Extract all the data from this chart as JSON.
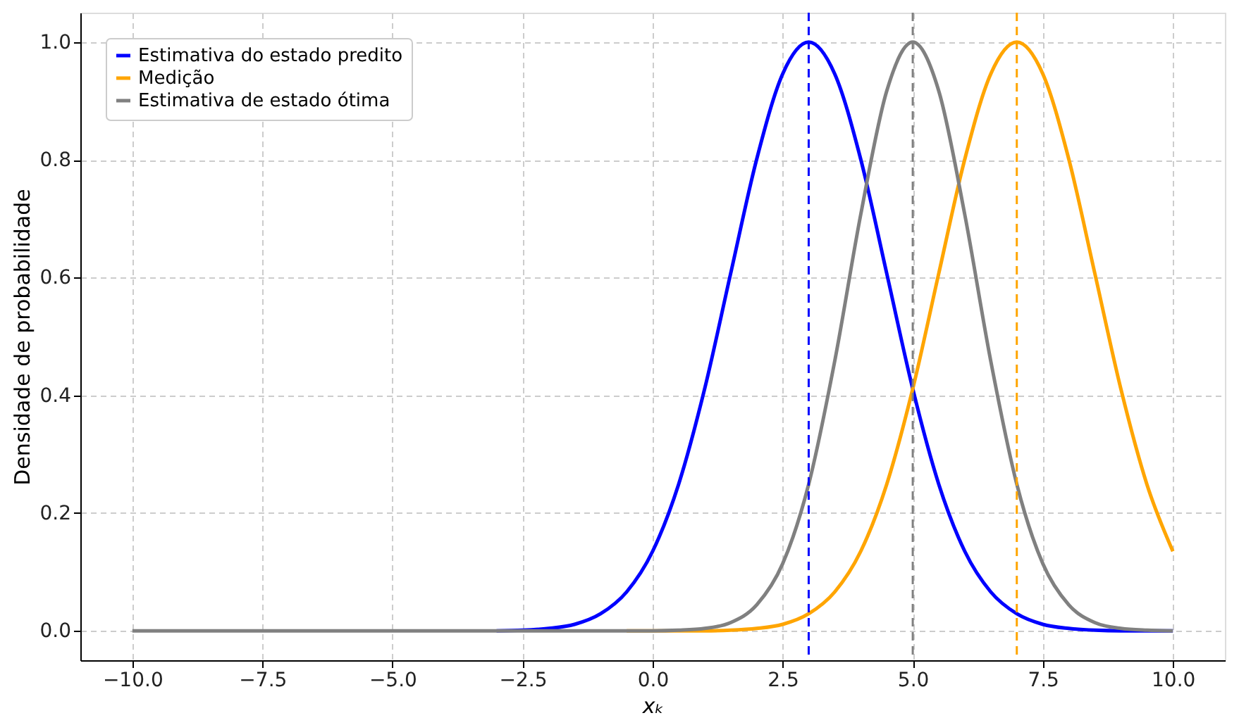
{
  "chart_data": {
    "type": "line",
    "xlabel": "xₖ",
    "ylabel": "Densidade de probabilidade",
    "x": [
      -10,
      -9.5,
      -9,
      -8.5,
      -8,
      -7.5,
      -7,
      -6.5,
      -6,
      -5.5,
      -5,
      -4.5,
      -4,
      -3.5,
      -3,
      -2.5,
      -2,
      -1.5,
      -1,
      -0.5,
      0,
      0.5,
      1,
      1.5,
      2,
      2.5,
      3,
      3.5,
      4,
      4.5,
      5,
      5.5,
      6,
      6.5,
      7,
      7.5,
      8,
      8.5,
      9,
      9.5,
      10
    ],
    "series": [
      {
        "name": "Estimativa do estado predito",
        "color": "#0000ff",
        "values": [
          null,
          null,
          null,
          null,
          null,
          null,
          null,
          null,
          null,
          null,
          null,
          null,
          null,
          null,
          0,
          0.001,
          0.004,
          0.011,
          0.029,
          0.066,
          0.135,
          0.249,
          0.411,
          0.607,
          0.801,
          0.946,
          1,
          0.946,
          0.801,
          0.607,
          0.411,
          0.249,
          0.135,
          0.066,
          0.029,
          0.011,
          0.004,
          0.001,
          0,
          0,
          0
        ]
      },
      {
        "name": "Medição",
        "color": "#ffa500",
        "values": [
          null,
          null,
          null,
          null,
          null,
          null,
          null,
          null,
          null,
          null,
          null,
          null,
          null,
          null,
          null,
          null,
          null,
          null,
          null,
          0,
          0,
          0,
          0,
          0.001,
          0.004,
          0.011,
          0.029,
          0.066,
          0.135,
          0.249,
          0.411,
          0.607,
          0.801,
          0.946,
          1,
          0.946,
          0.801,
          0.607,
          0.411,
          0.249,
          0.135
        ]
      },
      {
        "name": "Estimativa de estado ótima",
        "color": "#808080",
        "values": [
          0,
          0,
          0,
          0,
          0,
          0,
          0,
          0,
          0,
          0,
          0,
          0,
          0,
          0,
          0,
          0,
          0,
          0,
          0,
          0,
          0,
          0.001,
          0.004,
          0.014,
          0.044,
          0.114,
          0.249,
          0.458,
          0.707,
          0.917,
          1,
          0.917,
          0.707,
          0.458,
          0.249,
          0.114,
          0.044,
          0.014,
          0.004,
          0.001,
          0
        ]
      }
    ],
    "ref_lines": [
      {
        "axis": "x",
        "value": 3,
        "color": "#0000ff",
        "line_style": "dashed"
      },
      {
        "axis": "x",
        "value": 5,
        "color": "#808080",
        "line_style": "dashed"
      },
      {
        "axis": "x",
        "value": 7,
        "color": "#ffa500",
        "line_style": "dashed"
      }
    ],
    "xlim": [
      -11,
      11
    ],
    "ylim": [
      -0.05,
      1.05
    ],
    "xticks": [
      {
        "value": -10,
        "label": "−10.0"
      },
      {
        "value": -7.5,
        "label": "−7.5"
      },
      {
        "value": -5,
        "label": "−5.0"
      },
      {
        "value": -2.5,
        "label": "−2.5"
      },
      {
        "value": 0,
        "label": "0.0"
      },
      {
        "value": 2.5,
        "label": "2.5"
      },
      {
        "value": 5,
        "label": "5.0"
      },
      {
        "value": 7.5,
        "label": "7.5"
      },
      {
        "value": 10,
        "label": "10.0"
      }
    ],
    "yticks": [
      {
        "value": 0,
        "label": "0.0"
      },
      {
        "value": 0.2,
        "label": "0.2"
      },
      {
        "value": 0.4,
        "label": "0.4"
      },
      {
        "value": 0.6,
        "label": "0.6"
      },
      {
        "value": 0.8,
        "label": "0.8"
      },
      {
        "value": 1,
        "label": "1.0"
      }
    ],
    "grid": true,
    "legend": "top left",
    "line_style": "solid",
    "marker": "none"
  }
}
